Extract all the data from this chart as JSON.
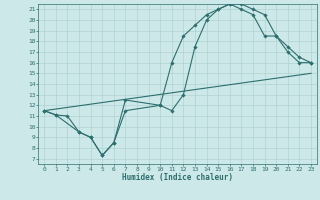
{
  "background_color": "#cde8e8",
  "grid_color": "#aacccc",
  "line_color": "#2d6e6e",
  "xlabel": "Humidex (Indice chaleur)",
  "xlim": [
    -0.5,
    23.5
  ],
  "ylim": [
    6.5,
    21.5
  ],
  "xticks": [
    0,
    1,
    2,
    3,
    4,
    5,
    6,
    7,
    8,
    9,
    10,
    11,
    12,
    13,
    14,
    15,
    16,
    17,
    18,
    19,
    20,
    21,
    22,
    23
  ],
  "yticks": [
    7,
    8,
    9,
    10,
    11,
    12,
    13,
    14,
    15,
    16,
    17,
    18,
    19,
    20,
    21
  ],
  "line1_x": [
    0,
    1,
    2,
    3,
    4,
    5,
    6,
    7,
    10,
    11,
    12,
    13,
    14,
    15,
    16,
    17,
    18,
    19,
    20,
    21,
    22,
    23
  ],
  "line1_y": [
    11.5,
    11.1,
    11.0,
    9.5,
    9.0,
    7.3,
    8.5,
    12.5,
    12.0,
    16.0,
    18.5,
    19.5,
    20.5,
    21.0,
    21.5,
    21.5,
    21.0,
    20.5,
    18.5,
    17.5,
    16.5,
    16.0
  ],
  "line2_x": [
    0,
    1,
    3,
    4,
    5,
    6,
    7,
    10,
    11,
    12,
    13,
    14,
    15,
    16,
    17,
    18,
    19,
    20,
    21,
    22,
    23
  ],
  "line2_y": [
    11.5,
    11.1,
    9.5,
    9.0,
    7.3,
    8.5,
    11.5,
    12.0,
    11.5,
    13.0,
    17.5,
    20.0,
    21.0,
    21.5,
    21.0,
    20.5,
    18.5,
    18.5,
    17.0,
    16.0,
    16.0
  ],
  "line3_x": [
    0,
    23
  ],
  "line3_y": [
    11.5,
    15.0
  ]
}
